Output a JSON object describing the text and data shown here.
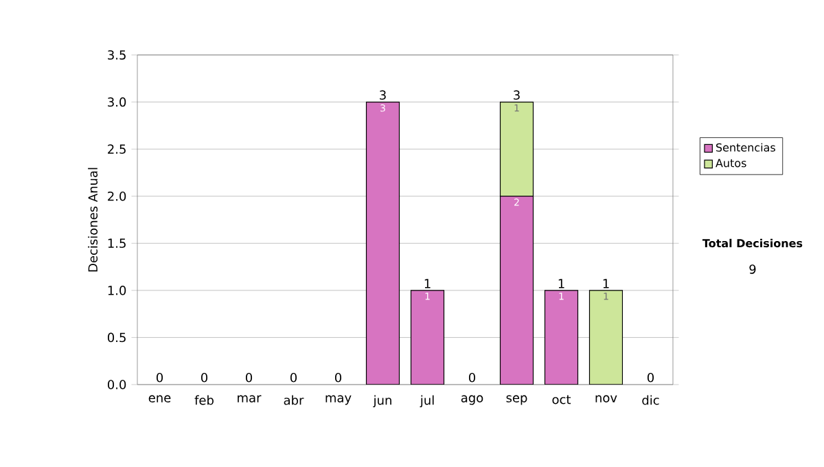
{
  "chart_data": {
    "type": "bar",
    "stacked": true,
    "ylabel": "Decisiones Anual",
    "categories": [
      "ene",
      "feb",
      "mar",
      "abr",
      "may",
      "jun",
      "jul",
      "ago",
      "sep",
      "oct",
      "nov",
      "dic"
    ],
    "series": [
      {
        "name": "Sentencias",
        "color": "#d774c1",
        "values": [
          0,
          0,
          0,
          0,
          0,
          3,
          1,
          0,
          2,
          1,
          0,
          0
        ],
        "value_labels": [
          null,
          null,
          null,
          null,
          null,
          "3",
          "1",
          null,
          "2",
          "1",
          null,
          null
        ]
      },
      {
        "name": "Autos",
        "color": "#cde69a",
        "values": [
          0,
          0,
          0,
          0,
          0,
          0,
          0,
          0,
          1,
          0,
          1,
          0
        ],
        "value_labels": [
          null,
          null,
          null,
          null,
          null,
          null,
          null,
          null,
          "1",
          null,
          "1",
          null
        ]
      }
    ],
    "totals": [
      "0",
      "0",
      "0",
      "0",
      "0",
      "3",
      "1",
      "0",
      "3",
      "1",
      "1",
      "0"
    ],
    "ylim": [
      0,
      3.5
    ],
    "yticks": [
      {
        "value": 0,
        "label": "0.0"
      },
      {
        "value": 0.5,
        "label": "0.5"
      },
      {
        "value": 1,
        "label": "1.0"
      },
      {
        "value": 1.5,
        "label": "1.5"
      },
      {
        "value": 2,
        "label": "2.0"
      },
      {
        "value": 2.5,
        "label": "2.5"
      },
      {
        "value": 3,
        "label": "3.0"
      },
      {
        "value": 3.5,
        "label": "3.5"
      }
    ],
    "grid": "y",
    "legend": "right",
    "annotations": [
      "Total Decisiones",
      "9"
    ]
  }
}
